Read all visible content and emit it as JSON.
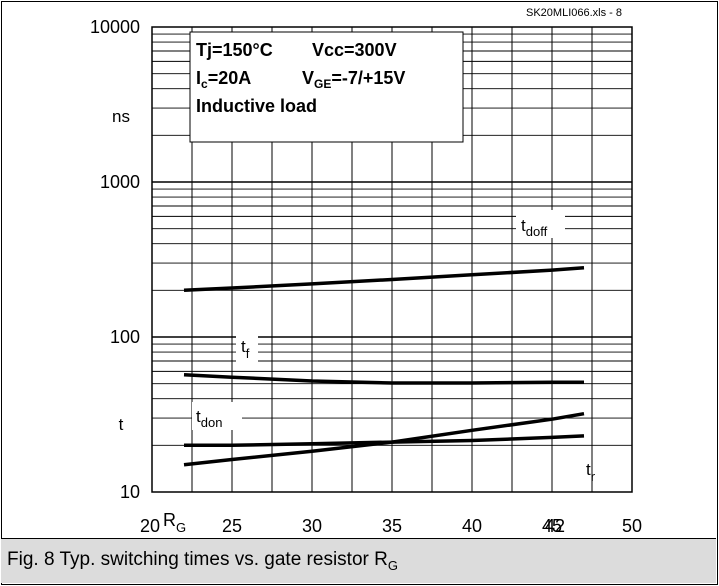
{
  "file_tag": "SK20MLI066.xls - 8",
  "conditions": {
    "line1a": "Tj=150°C",
    "line1b": "Vcc=300V",
    "line2_ic_prefix": "I",
    "line2_ic_sub": "c",
    "line2_ic_value": "=20A",
    "line2_vge_prefix": "V",
    "line2_vge_sub": "GE",
    "line2_vge_value": "=-7/+15V",
    "line3": "Inductive load"
  },
  "caption": {
    "text": "Fig. 8 Typ. switching times vs. gate resistor R",
    "sub": "G"
  },
  "colors": {
    "line": "#000000",
    "grid": "#000000",
    "caption_bg": "#dcdcdc"
  },
  "chart_data": {
    "type": "line",
    "x_scale": "linear",
    "y_scale": "log",
    "xlim": [
      20,
      50
    ],
    "ylim": [
      10,
      10000
    ],
    "x_ticks": [
      "20",
      "25",
      "30",
      "35",
      "40",
      "45",
      "50"
    ],
    "y_ticks": [
      "10",
      "100",
      "1000",
      "10000"
    ],
    "xlabel_main": "R",
    "xlabel_sub": "G",
    "ylabel_unit": "ns",
    "ylabel_symbol": "t",
    "stray_label": "42",
    "grid": true,
    "series": [
      {
        "name": "t_doff",
        "label_main": "t",
        "label_sub": "doff",
        "x": [
          22,
          25,
          30,
          35,
          40,
          45,
          47
        ],
        "y": [
          200,
          207,
          220,
          235,
          252,
          270,
          280
        ]
      },
      {
        "name": "t_f",
        "label_main": "t",
        "label_sub": "f",
        "x": [
          22,
          25,
          30,
          35,
          40,
          45,
          47
        ],
        "y": [
          57,
          55,
          52,
          50.5,
          50.5,
          51,
          51
        ]
      },
      {
        "name": "t_don",
        "label_main": "t",
        "label_sub": "don",
        "x": [
          22,
          25,
          30,
          35,
          40,
          45,
          47
        ],
        "y": [
          20,
          20,
          20.5,
          21,
          21.5,
          22.5,
          23
        ]
      },
      {
        "name": "t_r",
        "label_main": "t",
        "label_sub": "r",
        "x": [
          22,
          25,
          30,
          35,
          40,
          45,
          47
        ],
        "y": [
          15,
          16.2,
          18.3,
          21,
          25,
          29.5,
          32
        ]
      }
    ]
  }
}
